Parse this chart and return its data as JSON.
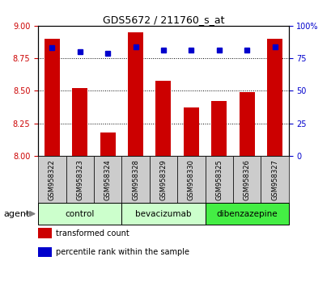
{
  "title": "GDS5672 / 211760_s_at",
  "samples": [
    "GSM958322",
    "GSM958323",
    "GSM958324",
    "GSM958328",
    "GSM958329",
    "GSM958330",
    "GSM958325",
    "GSM958326",
    "GSM958327"
  ],
  "transformed_counts": [
    8.9,
    8.52,
    8.18,
    8.95,
    8.58,
    8.37,
    8.42,
    8.49,
    8.9
  ],
  "percentile_ranks": [
    83,
    80,
    79,
    84,
    81,
    81,
    81,
    81,
    84
  ],
  "ylim_left": [
    8.0,
    9.0
  ],
  "ylim_right": [
    0,
    100
  ],
  "yticks_left": [
    8.0,
    8.25,
    8.5,
    8.75,
    9.0
  ],
  "yticks_right": [
    0,
    25,
    50,
    75,
    100
  ],
  "bar_color": "#cc0000",
  "dot_color": "#0000cc",
  "groups": [
    {
      "label": "control",
      "indices": [
        0,
        1,
        2
      ],
      "color": "#ccffcc"
    },
    {
      "label": "bevacizumab",
      "indices": [
        3,
        4,
        5
      ],
      "color": "#ccffcc"
    },
    {
      "label": "dibenzazepine",
      "indices": [
        6,
        7,
        8
      ],
      "color": "#44ee44"
    }
  ],
  "agent_label": "agent",
  "legend_bar_label": "transformed count",
  "legend_dot_label": "percentile rank within the sample",
  "tick_color_left": "#cc0000",
  "tick_color_right": "#0000cc",
  "sample_box_color": "#cccccc",
  "bar_width": 0.55
}
